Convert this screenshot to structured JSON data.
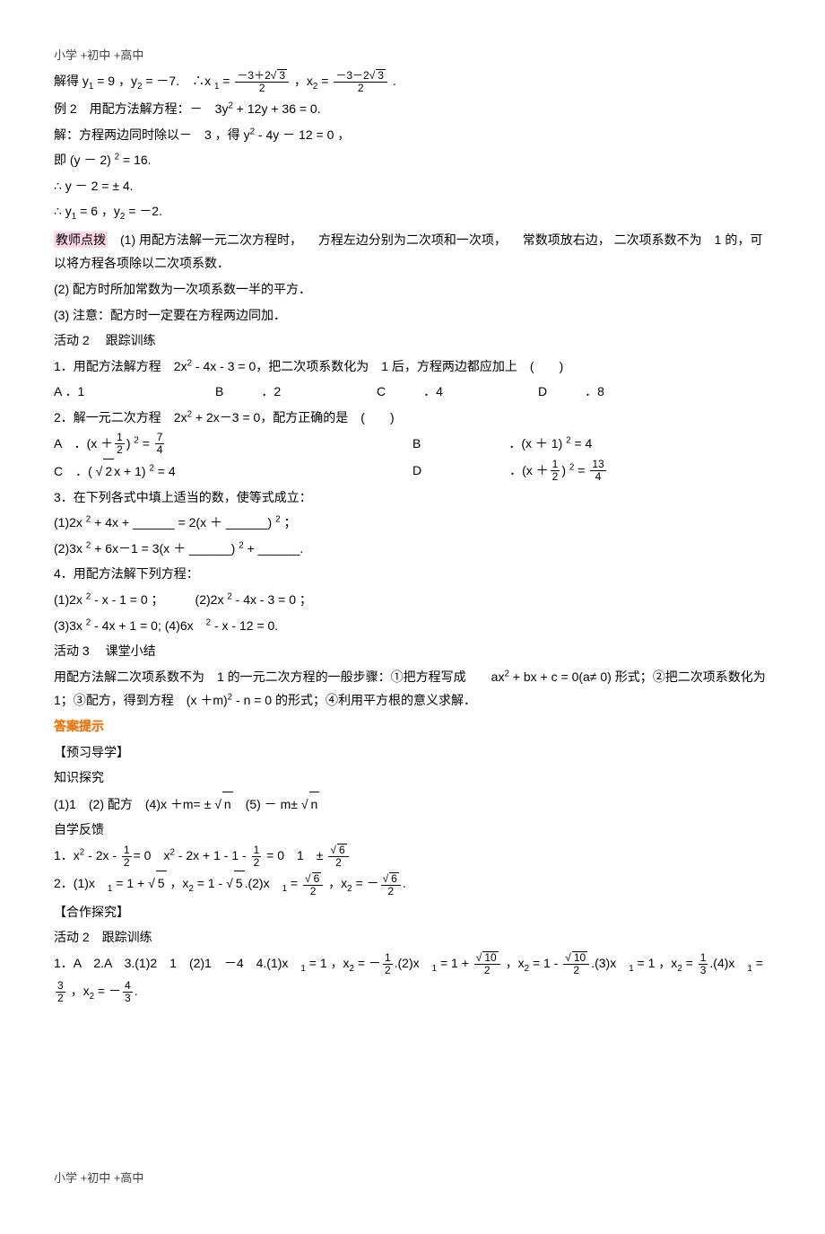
{
  "header": "小学 +初中 +高中",
  "footer": "小学 +初中 +高中",
  "lines": {
    "l1a": "解得 y",
    "l1b": " = 9 ，y",
    "l1c": " = －7.　∴x ",
    "l1d": " = ",
    "l1e": " ，x",
    "l1f": " = ",
    "l1g": ".",
    "frac1_num": "－3＋2",
    "frac1_sqrt": "3",
    "frac1_den": "2",
    "frac2_num": "－3－2",
    "frac2_sqrt": "3",
    "frac2_den": "2",
    "l2": "例 2　用配方法解方程：－　3y",
    "l2b": " + 12y + 36 = 0.",
    "l3": "解：方程两边同时除以－　3 ，得 y",
    "l3b": " - 4y － 12 = 0 ，",
    "l4": "即 (y － 2) ",
    "l4b": " = 16.",
    "l5": "∴ y － 2 = ± 4.",
    "l6": "∴ y",
    "l6b": " = 6 ，y",
    "l6c": " = －2.",
    "teacher": "教师点拨",
    "l7": "　(1) 用配方法解一元二次方程时， 　方程左边分别为二次项和一次项， 　常数项放右边， 二次项系数不为　1 的，可以将方程各项除以二次项系数．",
    "l8": "(2) 配方时所加常数为一次项系数一半的平方．",
    "l9": "(3) 注意：配方时一定要在方程两边同加．",
    "l10": "活动 2 　跟踪训练",
    "l11": "1．用配方法解方程　2x",
    "l11b": " - 4x - 3 = 0，把二次项系数化为　1 后，方程两边都应加上　(　　)",
    "l12a": "A ．1",
    "l12b": "B　　　．2",
    "l12c": "C　　　．4",
    "l12d": "D　　　．8",
    "l13": "2．解一元二次方程　2x",
    "l13b": " + 2x－3 = 0，配方正确的是　(　　)",
    "l14a": "A　．(x ＋",
    "l14b": ") ",
    "l14c": " = ",
    "frac3_num": "1",
    "frac3_den": "2",
    "frac4_num": "7",
    "frac4_den": "4",
    "l14d": "B　　　　　　　．(x ＋ 1) ",
    "l14e": " = 4",
    "l15a": "C　．( ",
    "l15sqrt": "2",
    "l15b": "x + 1) ",
    "l15c": " = 4",
    "l15d": "D　　　　　　　．(x ＋",
    "l15e": ") ",
    "l15f": " = ",
    "frac5_num": "1",
    "frac5_den": "2",
    "frac6_num": "13",
    "frac6_den": "4",
    "l16": "3．在下列各式中填上适当的数，使等式成立：",
    "l17": "(1)2x ",
    "l17b": " + 4x + ______ = 2(x ＋ ______) ",
    "l17c": " ；",
    "l18": "(2)3x ",
    "l18b": " + 6x－1 = 3(x ＋ ______) ",
    "l18c": " + ______.",
    "l19": "4．用配方法解下列方程：",
    "l20": "(1)2x ",
    "l20b": " - x - 1 = 0 ；　　　(2)2x ",
    "l20c": " - 4x - 3 = 0 ；",
    "l21": "(3)3x ",
    "l21b": " - 4x + 1 = 0;  (4)6x　",
    "l21c": " - x - 12 = 0.",
    "l22": "活动 3 　课堂小结",
    "l23": "用配方法解二次项系数不为　1 的一元二次方程的一般步骤：①把方程写成　　ax",
    "l23b": " + bx + c = 0(a≠ 0) 形式；②把二次项系数化为　1；③配方，得到方程　(x ＋m)",
    "l23c": " - n = 0 的形式；④利用平方根的意义求解．",
    "answer": "答案提示",
    "l24": "【预习导学】",
    "l25": "知识探究",
    "l26": "(1)1　(2) 配方　(4)x ＋m= ± ",
    "l26sqrt": "n",
    "l26b": "　(5) － m± ",
    "l26sqrt2": "n",
    "l27": "自学反馈",
    "l28": "1．x",
    "l28b": " - 2x - ",
    "frac7_num": "1",
    "frac7_den": "2",
    "l28c": "= 0　x",
    "l28d": " - 2x + 1 - 1 - ",
    "frac8_num": "1",
    "frac8_den": "2",
    "l28e": " = 0　1　± ",
    "frac9_sqrt": "6",
    "frac9_den": "2",
    "l29": "2．(1)x　",
    "l29b": " = 1 + ",
    "l29sqrt1": "5",
    "l29c": " ，x",
    "l29d": " = 1 - ",
    "l29sqrt2": "5",
    "l29e": ".(2)x　",
    "l29f": " = ",
    "frac10_sqrt": "6",
    "frac10_den": "2",
    "l29g": " ，x",
    "l29h": " = －",
    "frac11_sqrt": "6",
    "frac11_den": "2",
    "l29i": ".",
    "l30": "【合作探究】",
    "l31": "活动 2　跟踪训练",
    "l32": "1．A　2.A　3.(1)2　1　(2)1　－4　4.(1)x　",
    "l32b": " = 1 ，x",
    "l32c": " = －",
    "frac12_num": "1",
    "frac12_den": "2",
    "l32d": ".(2)x　",
    "l32e": " = 1 + ",
    "frac13_sqrt": "10",
    "frac13_den": "2",
    "l32f": " ，x",
    "l32g": " = 1 - ",
    "frac14_sqrt": "10",
    "frac14_den": "2",
    "l32h": ".(3)x　",
    "l32i": " = 1 ，x",
    "l32j": " = ",
    "frac15_num": "1",
    "frac15_den": "3",
    "l32k": ".(4)x　",
    "l32l": " = ",
    "frac16_num": "3",
    "frac16_den": "2",
    "l32m": " ，x",
    "l32n": " = －",
    "frac17_num": "4",
    "frac17_den": "3",
    "l32o": "."
  }
}
